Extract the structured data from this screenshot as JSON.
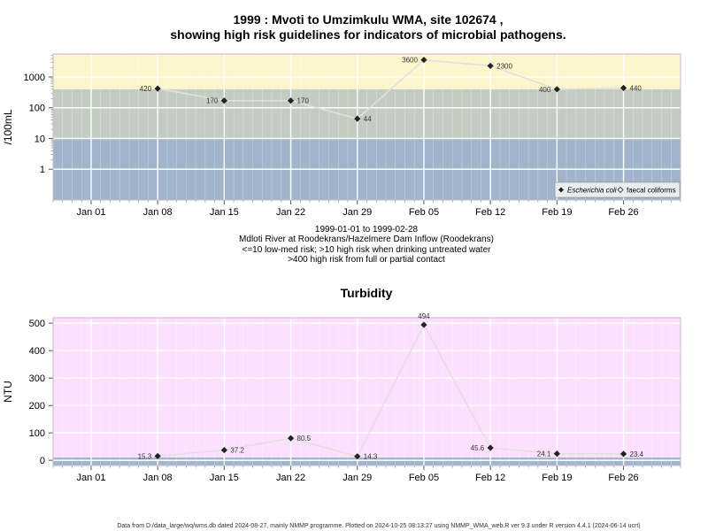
{
  "page": {
    "title_line1": "1999 : Mvoti to Umzimkulu WMA, site 102674 ,",
    "title_line2": "showing high risk guidelines for indicators of microbial pathogens.",
    "caption_lines": [
      "1999-01-01 to 1999-02-28",
      "Mdloti River at Roodekrans/Hazelmere Dam Inflow (Roodekrans)",
      "<=10 low-med risk; >10 high risk when drinking untreated water",
      ">400 high risk from full or partial contact"
    ],
    "footer": "Data from D:/data_large/wq/wms.db dated 2024-08-27, mainly NMMP programme. Plotted on 2024-10-25 08:13:27 using NMMP_WMA_web.R ver 9.3 under R version 4.4.1 (2024-06-14 ucrt)"
  },
  "colors": {
    "band_low": "#a0b4cc",
    "band_mid": "#c3ccc0",
    "band_high": "#fdf5cc",
    "turbidity_bg": "#fde0fd",
    "turbidity_band": "#a0b4cc",
    "line": "#e0e0e0",
    "point": "#222222"
  },
  "chart_data": [
    {
      "type": "line",
      "title": "",
      "ylabel": "/100mL",
      "yscale": "log",
      "ylim": [
        0.1,
        5600
      ],
      "yticks": [
        1,
        10,
        100,
        1000
      ],
      "ytick_labels": [
        "1",
        "10",
        "100",
        "1000"
      ],
      "x_ticks": [
        "Jan 01",
        "Jan 08",
        "Jan 15",
        "Jan 22",
        "Jan 29",
        "Feb 05",
        "Feb 12",
        "Feb 19",
        "Feb 26"
      ],
      "x_tick_dates": [
        "1999-01-01",
        "1999-01-08",
        "1999-01-15",
        "1999-01-22",
        "1999-01-29",
        "1999-02-05",
        "1999-02-12",
        "1999-02-19",
        "1999-02-26"
      ],
      "xlim": [
        "1998-12-28",
        "1999-03-04"
      ],
      "bands": [
        {
          "from": 0.1,
          "to": 10,
          "color": "#a0b4cc"
        },
        {
          "from": 10,
          "to": 400,
          "color": "#c3ccc0"
        },
        {
          "from": 400,
          "to": 5600,
          "color": "#fdf5cc"
        }
      ],
      "legend_position": "bottom-right",
      "series": [
        {
          "name": "Escherichia coli",
          "x": [
            "1999-01-08",
            "1999-01-15",
            "1999-01-22",
            "1999-01-29",
            "1999-02-05",
            "1999-02-12",
            "1999-02-19",
            "1999-02-26"
          ],
          "values": [
            420,
            170,
            170,
            44,
            3600,
            2300,
            400,
            440
          ],
          "labels": [
            "420",
            "170",
            "170",
            "44",
            "3600",
            "2300",
            "400",
            "440"
          ],
          "label_side": [
            "left",
            "left",
            "right",
            "right",
            "left",
            "right",
            "left",
            "right"
          ]
        },
        {
          "name": "faecal coliforms",
          "x": [],
          "values": []
        }
      ]
    },
    {
      "type": "line",
      "title": "Turbidity",
      "ylabel": "NTU",
      "ylim": [
        -19,
        520
      ],
      "yticks": [
        0,
        100,
        200,
        300,
        400,
        500
      ],
      "ytick_labels": [
        "0",
        "100",
        "200",
        "300",
        "400",
        "500"
      ],
      "x_ticks": [
        "Jan 01",
        "Jan 08",
        "Jan 15",
        "Jan 22",
        "Jan 29",
        "Feb 05",
        "Feb 12",
        "Feb 19",
        "Feb 26"
      ],
      "x_tick_dates": [
        "1999-01-01",
        "1999-01-08",
        "1999-01-15",
        "1999-01-22",
        "1999-01-29",
        "1999-02-05",
        "1999-02-12",
        "1999-02-19",
        "1999-02-26"
      ],
      "xlim": [
        "1998-12-28",
        "1999-03-04"
      ],
      "band": {
        "from": -19,
        "to": 10,
        "color": "#a0b4cc"
      },
      "series": [
        {
          "name": "",
          "x": [
            "1999-01-08",
            "1999-01-15",
            "1999-01-22",
            "1999-01-29",
            "1999-02-05",
            "1999-02-12",
            "1999-02-19",
            "1999-02-26"
          ],
          "values": [
            15.3,
            37.2,
            80.5,
            14.3,
            494,
            45.6,
            24.1,
            23.4
          ],
          "labels": [
            "15.3",
            "37.2",
            "80.5",
            "14.3",
            "494",
            "45.6",
            "24.1",
            "23.4"
          ],
          "label_side": [
            "left",
            "right",
            "right",
            "right",
            "above",
            "left",
            "left",
            "right"
          ]
        }
      ]
    }
  ]
}
